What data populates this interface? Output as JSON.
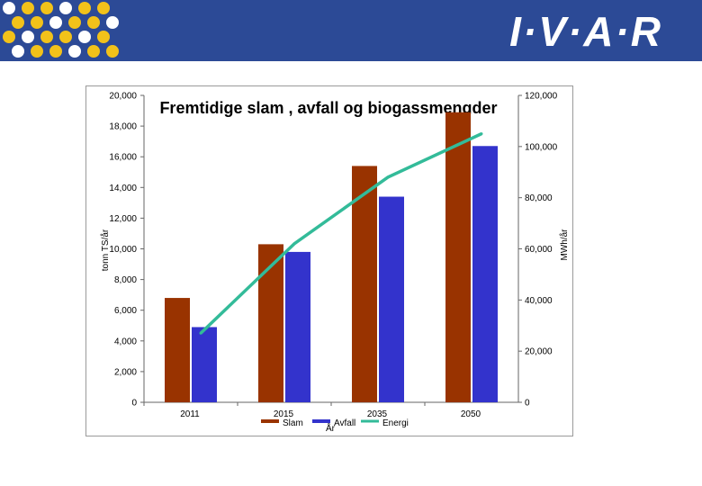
{
  "header": {
    "logo_text": "I·V·A·R",
    "brand_color": "#2c4a96",
    "dot_color_1": "#f2c21a",
    "dot_color_2": "#ffffff"
  },
  "chart_data": {
    "type": "bar",
    "title": "Fremtidige slam , avfall og biogassmengder",
    "categories": [
      "2011",
      "2015",
      "2035",
      "2050"
    ],
    "ylabel": "tonn TS/år",
    "y2label": "MWh/år",
    "ylim": [
      0,
      20000
    ],
    "y2lim": [
      0,
      120000
    ],
    "yticks": [
      "0",
      "2,000",
      "4,000",
      "6,000",
      "8,000",
      "10,000",
      "12,000",
      "14,000",
      "16,000",
      "18,000",
      "20,000"
    ],
    "y2ticks": [
      "0",
      "20,000",
      "40,000",
      "60,000",
      "80,000",
      "100,000",
      "120,000"
    ],
    "series": [
      {
        "name": "Slam",
        "type": "bar",
        "axis": "left",
        "color": "#993300",
        "values": [
          6800,
          10300,
          15400,
          18900
        ]
      },
      {
        "name": "Avfall",
        "type": "bar",
        "axis": "left",
        "color": "#3333cc",
        "values": [
          4900,
          9800,
          13400,
          16700
        ]
      },
      {
        "name": "Energi",
        "type": "line",
        "axis": "right",
        "color": "#33bb99",
        "values": [
          27000,
          62000,
          88000,
          105000
        ]
      }
    ],
    "extra_label": "År",
    "legend_position": "bottom"
  }
}
